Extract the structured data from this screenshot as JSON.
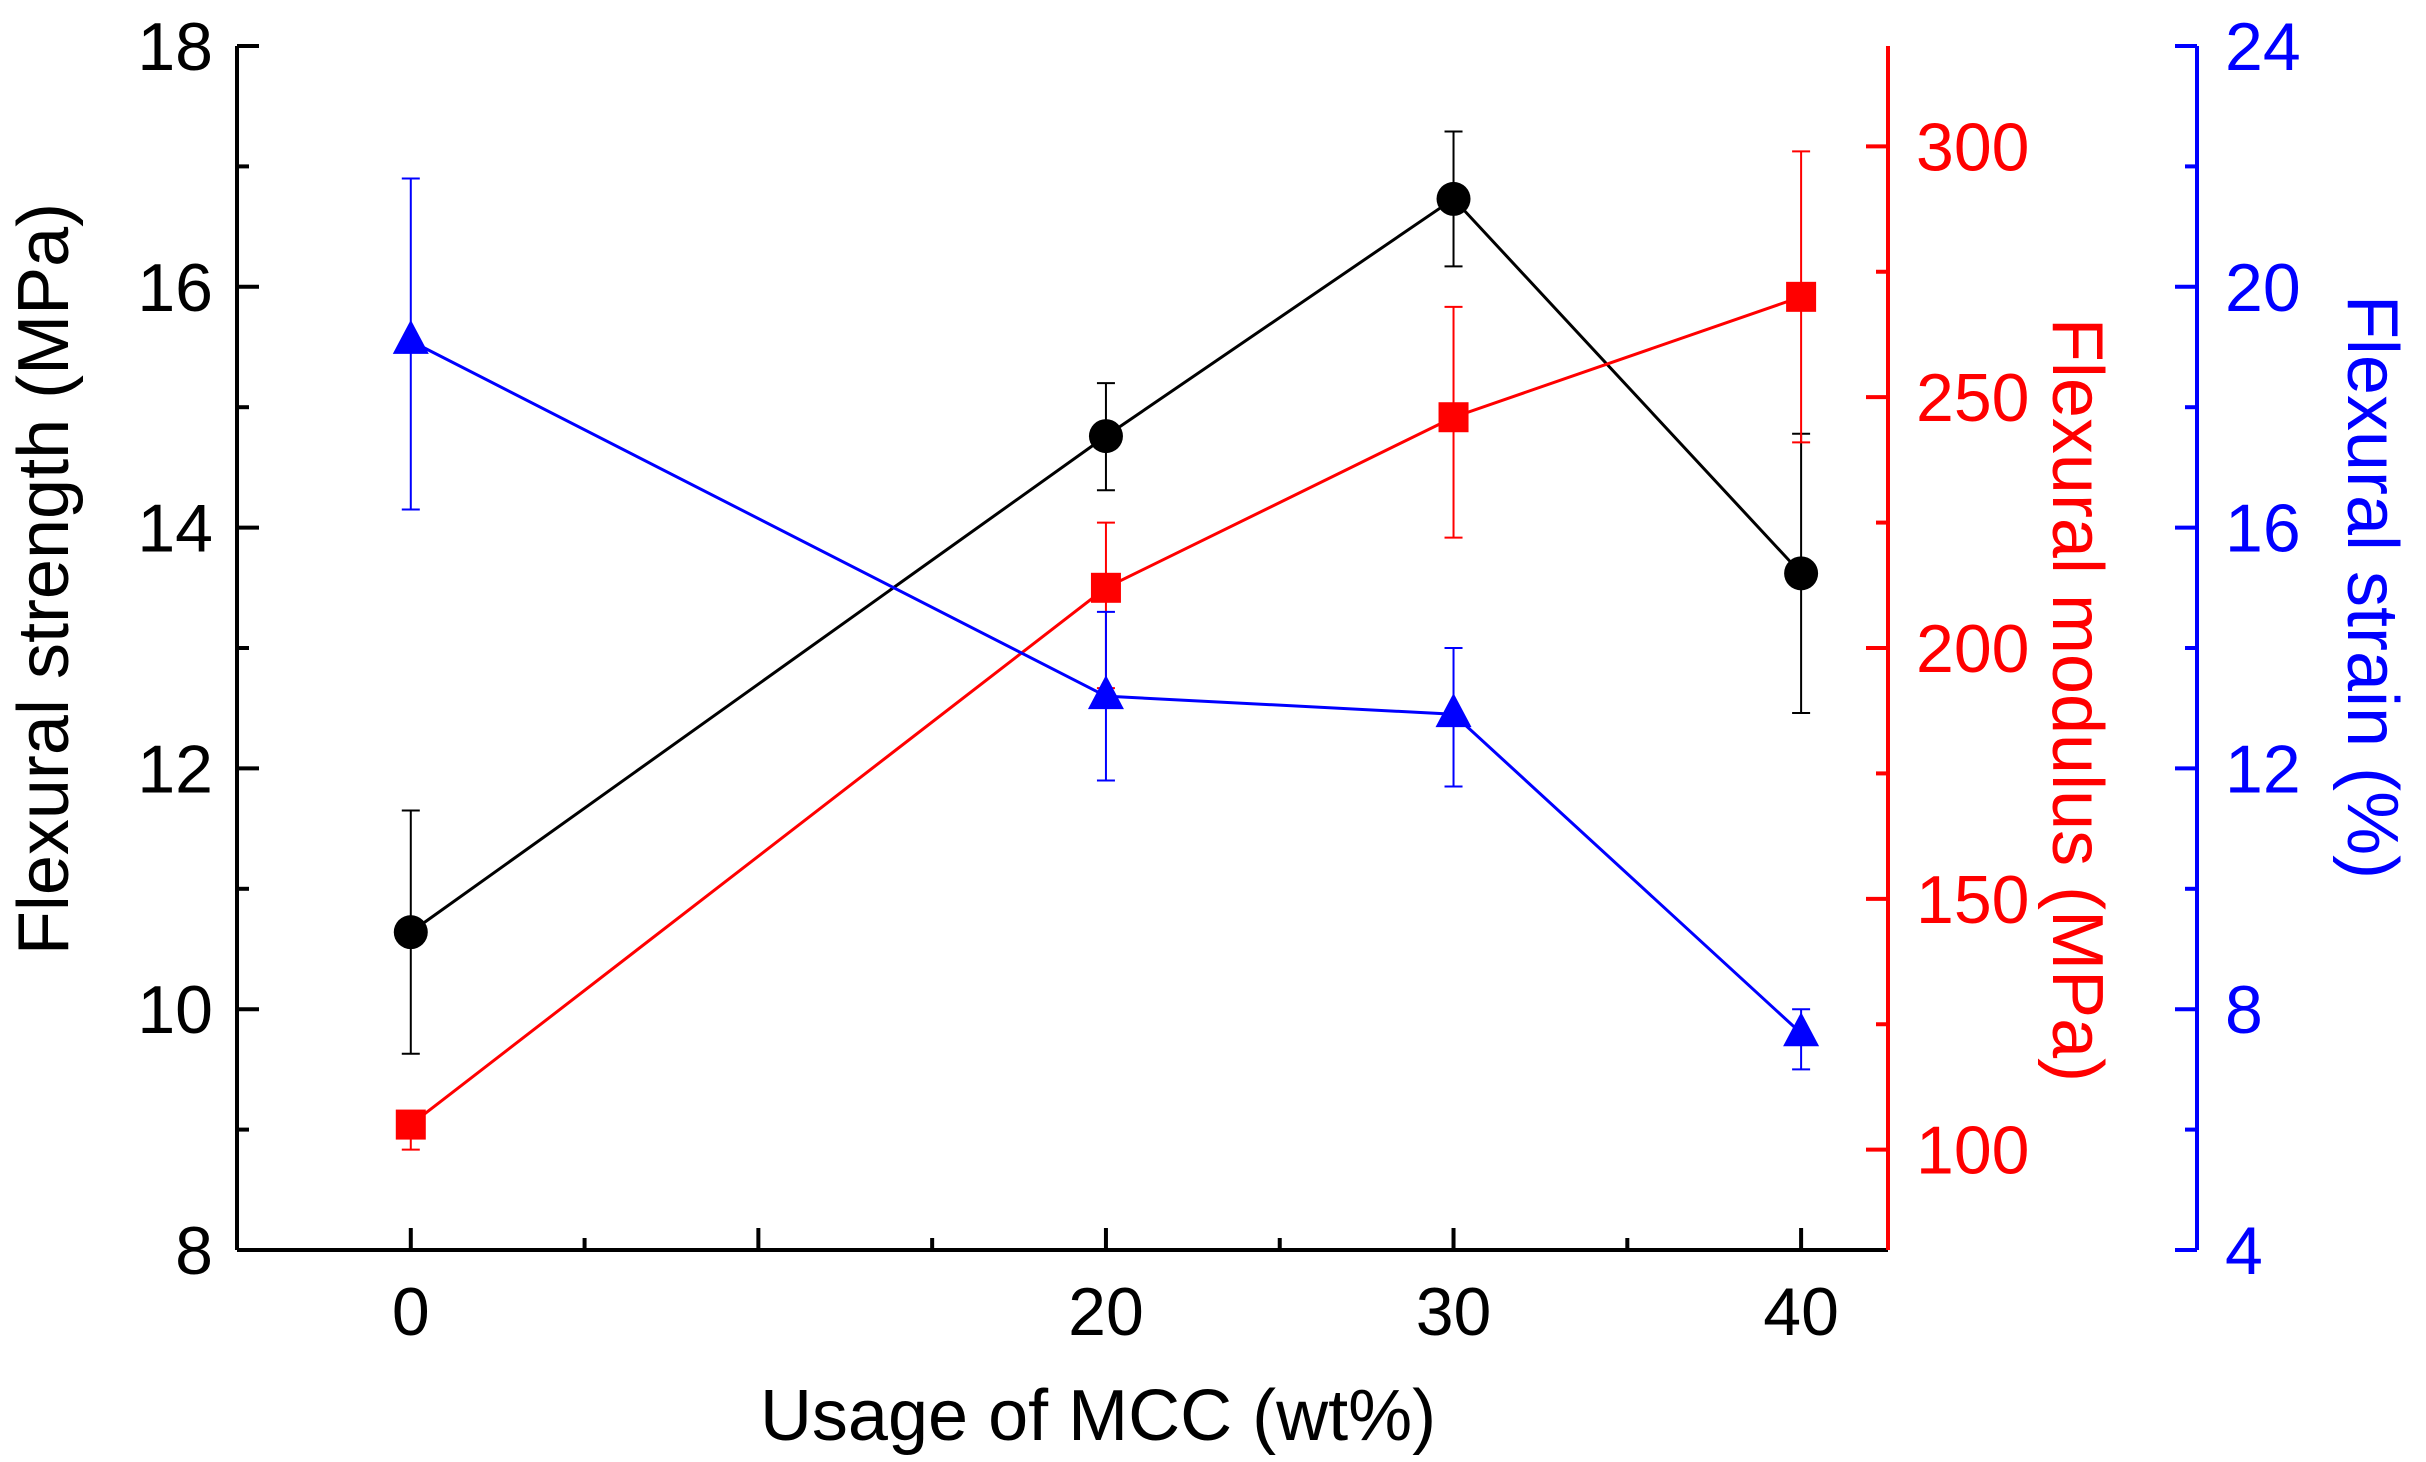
{
  "chart_data": {
    "type": "line",
    "x": [
      0,
      20,
      30,
      40
    ],
    "xlabel": "Usage of MCC (wt%)",
    "xticks": [
      "0",
      "20",
      "30",
      "40"
    ],
    "series": [
      {
        "name": "Flexural strength",
        "axis": "left",
        "marker": "circle",
        "color": "#000000",
        "values": [
          10.64,
          14.76,
          16.73,
          13.62
        ],
        "err_lo": [
          9.63,
          14.31,
          16.17,
          12.46
        ],
        "err_hi": [
          11.65,
          15.2,
          17.29,
          14.78
        ]
      },
      {
        "name": "Flexural modulus",
        "axis": "right1",
        "marker": "square",
        "color": "#ff0000",
        "values": [
          105,
          212,
          246,
          270
        ],
        "err_lo": [
          100,
          192,
          222,
          241
        ],
        "err_hi": [
          107,
          225,
          268,
          299
        ]
      },
      {
        "name": "Flexural strain",
        "axis": "right2",
        "marker": "triangle",
        "color": "#0000ff",
        "values": [
          19.1,
          13.2,
          12.9,
          7.6
        ],
        "err_lo": [
          16.3,
          11.8,
          11.7,
          7.0
        ],
        "err_hi": [
          21.8,
          14.6,
          14.0,
          8.0
        ]
      }
    ],
    "axes": {
      "left": {
        "label": "Flexural strength (MPa)",
        "range": [
          8,
          18
        ],
        "ticks": [
          "8",
          "10",
          "12",
          "14",
          "16",
          "18"
        ],
        "color": "#000000"
      },
      "right1": {
        "label": "Flexural modulus (MPa)",
        "range": [
          80,
          320
        ],
        "ticks": [
          "100",
          "150",
          "200",
          "250",
          "300"
        ],
        "color": "#ff0000"
      },
      "right2": {
        "label": "Flexural strain (%)",
        "range": [
          4,
          24
        ],
        "ticks": [
          "4",
          "8",
          "12",
          "16",
          "20",
          "24"
        ],
        "color": "#0000ff"
      }
    },
    "xrange": [
      -5,
      42.5
    ]
  }
}
